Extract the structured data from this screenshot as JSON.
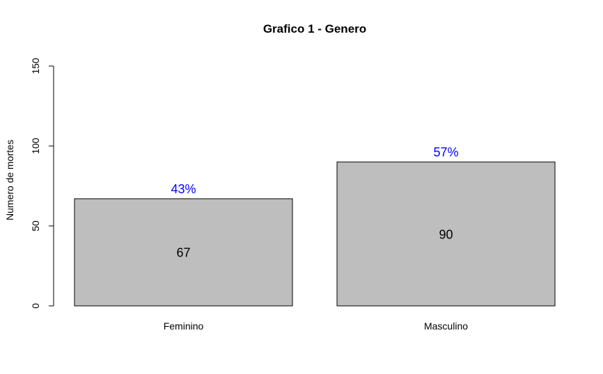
{
  "chart_data": {
    "type": "bar",
    "title": "Grafico 1 - Genero",
    "ylabel": "Numero de mortes",
    "xlabel": "",
    "categories": [
      "Feminino",
      "Masculino"
    ],
    "values": [
      67,
      90
    ],
    "percent_labels": [
      "43%",
      "57%"
    ],
    "value_labels": [
      "67",
      "90"
    ],
    "ylim": [
      0,
      150
    ],
    "yticks": [
      0,
      50,
      100,
      150
    ],
    "ytick_labels": [
      "0",
      "50",
      "100",
      "150"
    ],
    "grid": false,
    "legend": "none",
    "colors": {
      "bar_fill": "#bebebe",
      "bar_stroke": "#000000",
      "percent_text": "#0000ff",
      "value_text": "#000000"
    }
  }
}
